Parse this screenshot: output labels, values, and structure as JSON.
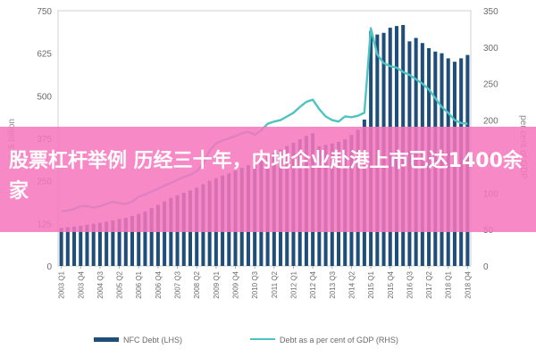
{
  "banner": {
    "title": "股票杠杆举例 历经三十年，内地企业赴港上市已达1400余家",
    "color": "#f776be"
  },
  "chart_data": {
    "type": "bar",
    "xlabel": "",
    "ylabel": "$ billion",
    "y2label": "per cent of GDP",
    "ylim": [
      0,
      750
    ],
    "y2lim": [
      0,
      350
    ],
    "yticks": [
      "0",
      "125",
      "250",
      "375",
      "500",
      "625",
      "750"
    ],
    "y2ticks": [
      "0",
      "50",
      "100",
      "150",
      "200",
      "250",
      "300",
      "350"
    ],
    "xticks": [
      "2003 Q1",
      "2003 Q4",
      "2004 Q3",
      "2005 Q2",
      "2006 Q1",
      "2006 Q4",
      "2007 Q3",
      "2008 Q2",
      "2009 Q1",
      "2009 Q4",
      "2010 Q3",
      "2011 Q2",
      "2012 Q1",
      "2012 Q4",
      "2013 Q3",
      "2014 Q2",
      "2015 Q1",
      "2015 Q4",
      "2016 Q3",
      "2017 Q2",
      "2018 Q1",
      "2018 Q4"
    ],
    "categories": [
      "2003 Q1",
      "2003 Q2",
      "2003 Q3",
      "2003 Q4",
      "2004 Q1",
      "2004 Q2",
      "2004 Q3",
      "2004 Q4",
      "2005 Q1",
      "2005 Q2",
      "2005 Q3",
      "2005 Q4",
      "2006 Q1",
      "2006 Q2",
      "2006 Q3",
      "2006 Q4",
      "2007 Q1",
      "2007 Q2",
      "2007 Q3",
      "2007 Q4",
      "2008 Q1",
      "2008 Q2",
      "2008 Q3",
      "2008 Q4",
      "2009 Q1",
      "2009 Q2",
      "2009 Q3",
      "2009 Q4",
      "2010 Q1",
      "2010 Q2",
      "2010 Q3",
      "2010 Q4",
      "2011 Q1",
      "2011 Q2",
      "2011 Q3",
      "2011 Q4",
      "2012 Q1",
      "2012 Q2",
      "2012 Q3",
      "2012 Q4",
      "2013 Q1",
      "2013 Q2",
      "2013 Q3",
      "2013 Q4",
      "2014 Q1",
      "2014 Q2",
      "2014 Q3",
      "2014 Q4",
      "2015 Q1",
      "2015 Q2",
      "2015 Q3",
      "2015 Q4",
      "2016 Q1",
      "2016 Q2",
      "2016 Q3",
      "2016 Q4",
      "2017 Q1",
      "2017 Q2",
      "2017 Q3",
      "2017 Q4",
      "2018 Q1",
      "2018 Q2",
      "2018 Q3",
      "2018 Q4"
    ],
    "series": [
      {
        "name": "NFC Debt (LHS)",
        "type": "bar",
        "axis": "left",
        "color": "#1f4e79",
        "values": [
          112,
          114,
          116,
          118,
          121,
          124,
          127,
          130,
          134,
          138,
          142,
          147,
          153,
          160,
          170,
          180,
          190,
          200,
          208,
          215,
          222,
          230,
          240,
          250,
          258,
          266,
          272,
          280,
          288,
          296,
          304,
          312,
          322,
          332,
          342,
          352,
          362,
          372,
          382,
          390,
          352,
          356,
          360,
          365,
          372,
          385,
          400,
          430,
          690,
          680,
          685,
          700,
          705,
          708,
          660,
          670,
          655,
          640,
          630,
          625,
          610,
          600,
          610,
          620
        ]
      },
      {
        "name": "Debt as a per cent of GDP (RHS)",
        "type": "line",
        "axis": "right",
        "color": "#4fc3c0",
        "values": [
          75,
          76,
          78,
          82,
          82,
          80,
          82,
          85,
          88,
          86,
          85,
          88,
          95,
          98,
          102,
          106,
          110,
          114,
          118,
          122,
          125,
          130,
          140,
          158,
          168,
          172,
          175,
          178,
          182,
          184,
          180,
          186,
          195,
          198,
          200,
          205,
          210,
          218,
          225,
          228,
          215,
          205,
          200,
          198,
          205,
          204,
          206,
          210,
          326,
          290,
          278,
          274,
          272,
          266,
          262,
          256,
          250,
          242,
          230,
          218,
          210,
          200,
          196,
          195
        ]
      }
    ],
    "legend": {
      "position": "bottom-left"
    },
    "grid": false
  }
}
